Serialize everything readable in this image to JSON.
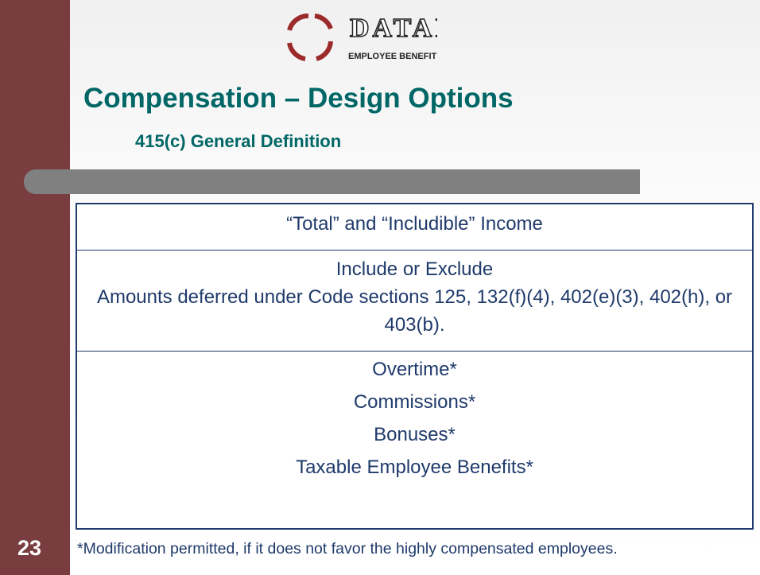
{
  "logo": {
    "name": "DATAIR",
    "tagline": "EMPLOYEE BENEFIT SYSTEMS, INC."
  },
  "title": "Compensation – Design Options",
  "subtitle": "415(c) General Definition",
  "table": {
    "rows": [
      [
        "“Total” and “Includible” Income"
      ],
      [
        "Include or Exclude",
        "Amounts deferred under Code sections 125, 132(f)(4), 402(e)(3), 402(h), or 403(b)."
      ],
      [
        "Overtime*",
        "Commissions*",
        "Bonuses*",
        "Taxable Employee Benefits*"
      ]
    ]
  },
  "footnote": "*Modification permitted, if it does not favor the highly compensated employees.",
  "page_number": "23"
}
